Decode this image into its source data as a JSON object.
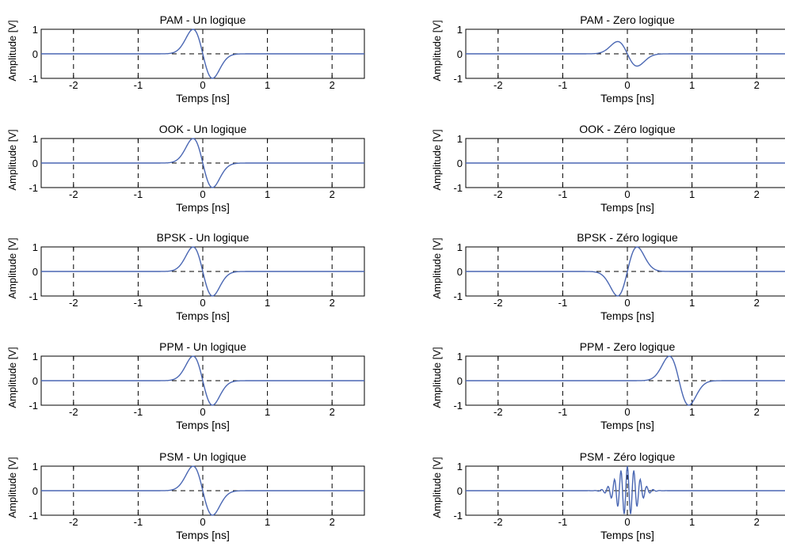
{
  "chart_data": [
    {
      "type": "line",
      "title": "PAM - Un logique",
      "xlabel": "Temps [ns]",
      "ylabel": "Amplitude [V]",
      "xlim": [
        -2.5,
        2.5
      ],
      "ylim": [
        -1,
        1
      ],
      "xticks": [
        -2,
        -1,
        0,
        1,
        2
      ],
      "yticks": [
        -1,
        0,
        1
      ],
      "grid": "dashed",
      "signal": {
        "kind": "doublet",
        "center_ns": 0,
        "amplitude": 1,
        "sign": 1
      },
      "samples": {
        "x": [
          -0.4,
          -0.3,
          -0.2,
          -0.15,
          -0.1,
          0,
          0.1,
          0.15,
          0.2,
          0.3,
          0.4
        ],
        "y": [
          0.15,
          0.5,
          0.9,
          1.0,
          0.93,
          0,
          -0.93,
          -1.0,
          -0.9,
          -0.5,
          -0.15
        ]
      }
    },
    {
      "type": "line",
      "title": "PAM - Zero logique",
      "xlabel": "Temps [ns]",
      "ylabel": "Amplitude [V]",
      "xlim": [
        -2.5,
        2.5
      ],
      "ylim": [
        -1,
        1
      ],
      "xticks": [
        -2,
        -1,
        0,
        1,
        2
      ],
      "yticks": [
        -1,
        0,
        1
      ],
      "grid": "dashed",
      "signal": {
        "kind": "doublet",
        "center_ns": 0,
        "amplitude": 0.5,
        "sign": 1
      },
      "samples": {
        "x": [
          -0.4,
          -0.3,
          -0.2,
          -0.15,
          -0.1,
          0,
          0.1,
          0.15,
          0.2,
          0.3,
          0.4
        ],
        "y": [
          0.08,
          0.25,
          0.45,
          0.5,
          0.47,
          0,
          -0.47,
          -0.5,
          -0.45,
          -0.25,
          -0.08
        ]
      }
    },
    {
      "type": "line",
      "title": "OOK - Un logique",
      "xlabel": "Temps [ns]",
      "ylabel": "Amplitude [V]",
      "xlim": [
        -2.5,
        2.5
      ],
      "ylim": [
        -1,
        1
      ],
      "xticks": [
        -2,
        -1,
        0,
        1,
        2
      ],
      "yticks": [
        -1,
        0,
        1
      ],
      "grid": "dashed",
      "signal": {
        "kind": "doublet",
        "center_ns": 0,
        "amplitude": 1,
        "sign": 1
      },
      "samples": {
        "x": [
          -0.4,
          -0.3,
          -0.2,
          -0.15,
          -0.1,
          0,
          0.1,
          0.15,
          0.2,
          0.3,
          0.4
        ],
        "y": [
          0.15,
          0.5,
          0.9,
          1.0,
          0.93,
          0,
          -0.93,
          -1.0,
          -0.9,
          -0.5,
          -0.15
        ]
      }
    },
    {
      "type": "line",
      "title": "OOK - Zéro logique",
      "xlabel": "Temps [ns]",
      "ylabel": "Amplitude [V]",
      "xlim": [
        -2.5,
        2.5
      ],
      "ylim": [
        -1,
        1
      ],
      "xticks": [
        -2,
        -1,
        0,
        1,
        2
      ],
      "yticks": [
        -1,
        0,
        1
      ],
      "grid": "dashed",
      "signal": {
        "kind": "zero",
        "center_ns": 0,
        "amplitude": 0,
        "sign": 1
      },
      "samples": {
        "x": [
          -2.5,
          0,
          2.5
        ],
        "y": [
          0,
          0,
          0
        ]
      }
    },
    {
      "type": "line",
      "title": "BPSK - Un logique",
      "xlabel": "Temps [ns]",
      "ylabel": "Amplitude [V]",
      "xlim": [
        -2.5,
        2.5
      ],
      "ylim": [
        -1,
        1
      ],
      "xticks": [
        -2,
        -1,
        0,
        1,
        2
      ],
      "yticks": [
        -1,
        0,
        1
      ],
      "grid": "dashed",
      "signal": {
        "kind": "doublet",
        "center_ns": 0,
        "amplitude": 1,
        "sign": 1
      },
      "samples": {
        "x": [
          -0.4,
          -0.3,
          -0.2,
          -0.15,
          -0.1,
          0,
          0.1,
          0.15,
          0.2,
          0.3,
          0.4
        ],
        "y": [
          0.15,
          0.5,
          0.9,
          1.0,
          0.93,
          0,
          -0.93,
          -1.0,
          -0.9,
          -0.5,
          -0.15
        ]
      }
    },
    {
      "type": "line",
      "title": "BPSK - Zéro logique",
      "xlabel": "Temps [ns]",
      "ylabel": "Amplitude [V]",
      "xlim": [
        -2.5,
        2.5
      ],
      "ylim": [
        -1,
        1
      ],
      "xticks": [
        -2,
        -1,
        0,
        1,
        2
      ],
      "yticks": [
        -1,
        0,
        1
      ],
      "grid": "dashed",
      "signal": {
        "kind": "doublet",
        "center_ns": 0,
        "amplitude": 1,
        "sign": -1
      },
      "samples": {
        "x": [
          -0.4,
          -0.3,
          -0.2,
          -0.15,
          -0.1,
          0,
          0.1,
          0.15,
          0.2,
          0.3,
          0.4
        ],
        "y": [
          -0.15,
          -0.5,
          -0.9,
          -1.0,
          -0.93,
          0,
          0.93,
          1.0,
          0.9,
          0.5,
          0.15
        ]
      }
    },
    {
      "type": "line",
      "title": "PPM - Un logique",
      "xlabel": "Temps [ns]",
      "ylabel": "Amplitude [V]",
      "xlim": [
        -2.5,
        2.5
      ],
      "ylim": [
        -1,
        1
      ],
      "xticks": [
        -2,
        -1,
        0,
        1,
        2
      ],
      "yticks": [
        -1,
        0,
        1
      ],
      "grid": "dashed",
      "signal": {
        "kind": "doublet",
        "center_ns": 0,
        "amplitude": 1,
        "sign": 1
      },
      "samples": {
        "x": [
          -0.4,
          -0.3,
          -0.2,
          -0.15,
          -0.1,
          0,
          0.1,
          0.15,
          0.2,
          0.3,
          0.4
        ],
        "y": [
          0.15,
          0.5,
          0.9,
          1.0,
          0.93,
          0,
          -0.93,
          -1.0,
          -0.9,
          -0.5,
          -0.15
        ]
      }
    },
    {
      "type": "line",
      "title": "PPM - Zero logique",
      "xlabel": "Temps [ns]",
      "ylabel": "Amplitude [V]",
      "xlim": [
        -2.5,
        2.5
      ],
      "ylim": [
        -1,
        1
      ],
      "xticks": [
        -2,
        -1,
        0,
        1,
        2
      ],
      "yticks": [
        -1,
        0,
        1
      ],
      "grid": "dashed",
      "signal": {
        "kind": "doublet",
        "center_ns": 0.8,
        "amplitude": 1,
        "sign": 1
      },
      "samples": {
        "x": [
          0.4,
          0.5,
          0.6,
          0.65,
          0.7,
          0.8,
          0.9,
          0.95,
          1.0,
          1.1,
          1.2
        ],
        "y": [
          0.15,
          0.5,
          0.9,
          1.0,
          0.93,
          0,
          -0.93,
          -1.0,
          -0.9,
          -0.5,
          -0.15
        ]
      }
    },
    {
      "type": "line",
      "title": "PSM - Un logique",
      "xlabel": "Temps [ns]",
      "ylabel": "Amplitude [V]",
      "xlim": [
        -2.5,
        2.5
      ],
      "ylim": [
        -1,
        1
      ],
      "xticks": [
        -2,
        -1,
        0,
        1,
        2
      ],
      "yticks": [
        -1,
        0,
        1
      ],
      "grid": "dashed",
      "signal": {
        "kind": "doublet",
        "center_ns": 0,
        "amplitude": 1,
        "sign": 1
      },
      "samples": {
        "x": [
          -0.4,
          -0.3,
          -0.2,
          -0.15,
          -0.1,
          0,
          0.1,
          0.15,
          0.2,
          0.3,
          0.4
        ],
        "y": [
          0.15,
          0.5,
          0.9,
          1.0,
          0.93,
          0,
          -0.93,
          -1.0,
          -0.9,
          -0.5,
          -0.15
        ]
      }
    },
    {
      "type": "line",
      "title": "PSM - Zéro logique",
      "xlabel": "Temps [ns]",
      "ylabel": "Amplitude [V]",
      "xlim": [
        -2.5,
        2.5
      ],
      "ylim": [
        -1,
        1
      ],
      "xticks": [
        -2,
        -1,
        0,
        1,
        2
      ],
      "yticks": [
        -1,
        0,
        1
      ],
      "grid": "dashed",
      "signal": {
        "kind": "burst",
        "center_ns": 0,
        "amplitude": 1,
        "sign": 1
      },
      "samples": {
        "x": [
          -0.3,
          -0.2,
          -0.1,
          -0.05,
          0,
          0.05,
          0.1,
          0.2,
          0.3
        ],
        "y": [
          0.3,
          -0.6,
          0.7,
          -0.95,
          1.0,
          -0.95,
          0.7,
          -0.6,
          0.3
        ]
      }
    }
  ],
  "style": {
    "line_color": "#4a67b3",
    "axis_color": "#000000",
    "grid_color": "#000000",
    "background": "#ffffff"
  }
}
